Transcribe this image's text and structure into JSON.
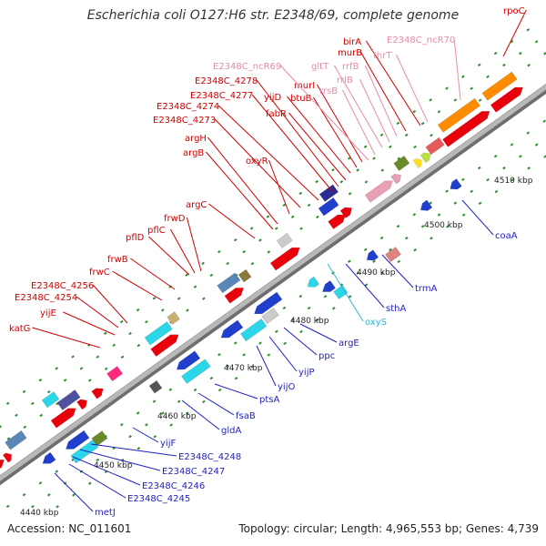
{
  "title": "Escherichia coli O127:H6 str. E2348/69, complete genome",
  "footer": {
    "accession": "Accession: NC_011601",
    "topology": "Topology: circular; Length: 4,965,553 bp; Genes: 4,739"
  },
  "colors": {
    "red": "#e8000a",
    "pink": "#e8a0b4",
    "blue": "#1f3fcc",
    "cyan": "#2bd6e8",
    "orange": "#ff8c00",
    "backbone": "#9a9a9a"
  },
  "kbp_ticks": [
    "4440 kbp",
    "4450 kbp",
    "4460 kbp",
    "4470 kbp",
    "4480 kbp",
    "4490 kbp",
    "4500 kbp",
    "4510 kbp"
  ],
  "top_labels": [
    {
      "text": "katG",
      "color": "#d00000"
    },
    {
      "text": "yijE",
      "color": "#d00000"
    },
    {
      "text": "E2348C_4254",
      "color": "#d00000"
    },
    {
      "text": "E2348C_4256",
      "color": "#d00000"
    },
    {
      "text": "frwC",
      "color": "#d00000"
    },
    {
      "text": "frwB",
      "color": "#d00000"
    },
    {
      "text": "pflD",
      "color": "#d00000"
    },
    {
      "text": "pflC",
      "color": "#d00000"
    },
    {
      "text": "frwD",
      "color": "#d00000"
    },
    {
      "text": "argC",
      "color": "#d00000"
    },
    {
      "text": "argB",
      "color": "#d00000"
    },
    {
      "text": "argH",
      "color": "#d00000"
    },
    {
      "text": "oxyR",
      "color": "#d00000"
    },
    {
      "text": "E2348C_4273",
      "color": "#d00000"
    },
    {
      "text": "E2348C_4274",
      "color": "#d00000"
    },
    {
      "text": "E2348C_4277",
      "color": "#d00000"
    },
    {
      "text": "E2348C_4278",
      "color": "#d00000"
    },
    {
      "text": "fabR",
      "color": "#d00000"
    },
    {
      "text": "yijD",
      "color": "#d00000"
    },
    {
      "text": "btuB",
      "color": "#d00000"
    },
    {
      "text": "murI",
      "color": "#d00000"
    },
    {
      "text": "E2348C_ncR69",
      "color": "#e88aaa"
    },
    {
      "text": "rrsB",
      "color": "#e88aaa"
    },
    {
      "text": "gltT",
      "color": "#e88aaa"
    },
    {
      "text": "rrlB",
      "color": "#e88aaa"
    },
    {
      "text": "rrfB",
      "color": "#e88aaa"
    },
    {
      "text": "murB",
      "color": "#d00000"
    },
    {
      "text": "birA",
      "color": "#d00000"
    },
    {
      "text": "thrT",
      "color": "#e88aaa"
    },
    {
      "text": "E2348C_ncR70",
      "color": "#e88aaa"
    },
    {
      "text": "rpoC",
      "color": "#d00000"
    }
  ],
  "bottom_labels": [
    {
      "text": "metJ",
      "color": "#1f1fbf"
    },
    {
      "text": "E2348C_4245",
      "color": "#1f1fbf"
    },
    {
      "text": "E2348C_4246",
      "color": "#1f1fbf"
    },
    {
      "text": "E2348C_4247",
      "color": "#1f1fbf"
    },
    {
      "text": "E2348C_4248",
      "color": "#1f1fbf"
    },
    {
      "text": "yijF",
      "color": "#1f1fbf"
    },
    {
      "text": "gldA",
      "color": "#1f1fbf"
    },
    {
      "text": "fsaB",
      "color": "#1f1fbf"
    },
    {
      "text": "ptsA",
      "color": "#1f1fbf"
    },
    {
      "text": "yijO",
      "color": "#1f1fbf"
    },
    {
      "text": "yijP",
      "color": "#1f1fbf"
    },
    {
      "text": "ppc",
      "color": "#1f1fbf"
    },
    {
      "text": "argE",
      "color": "#1f1fbf"
    },
    {
      "text": "oxyS",
      "color": "#2bb8e0"
    },
    {
      "text": "sthA",
      "color": "#1f1fbf"
    },
    {
      "text": "trmA",
      "color": "#1f1fbf"
    },
    {
      "text": "coaA",
      "color": "#1f1fbf"
    }
  ]
}
